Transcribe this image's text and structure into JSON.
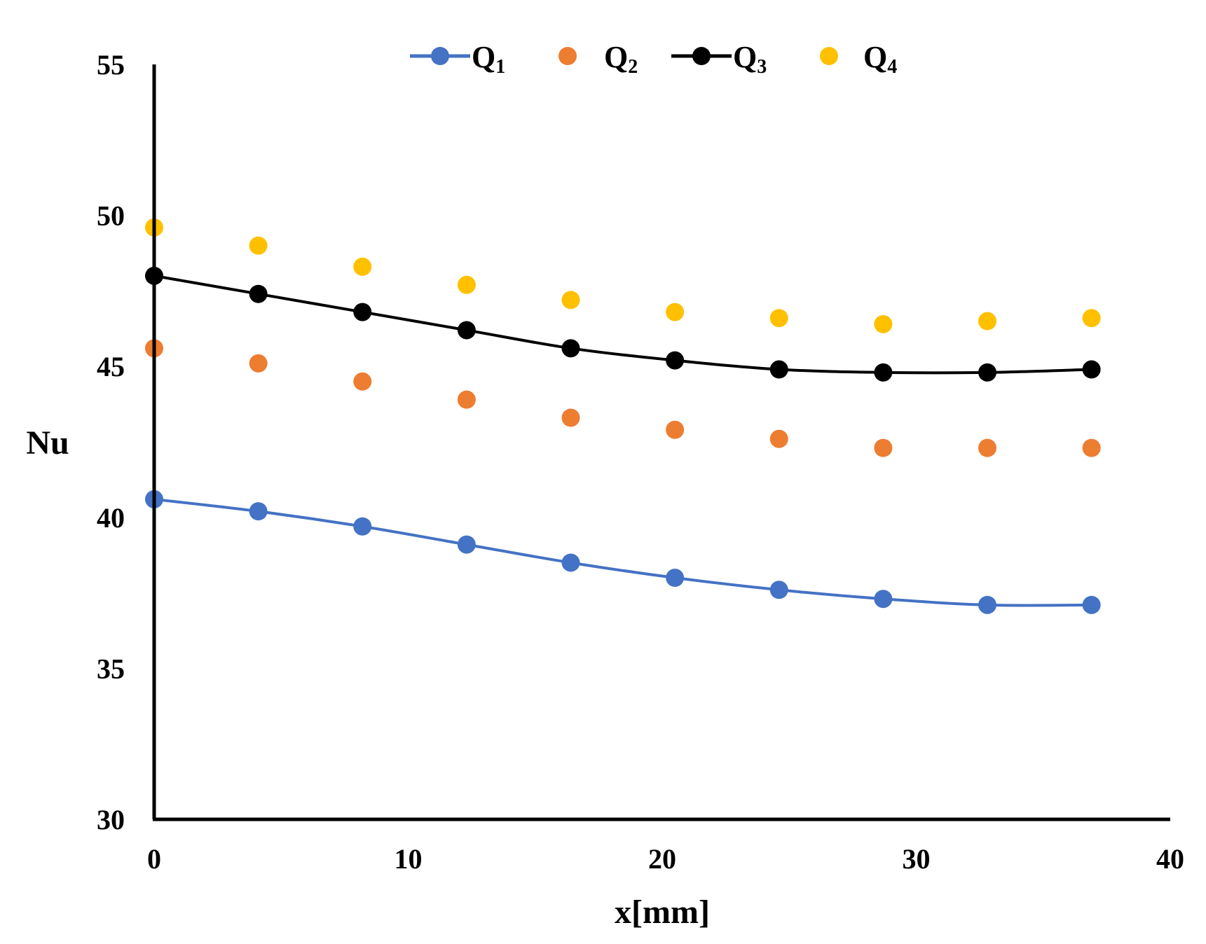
{
  "chart_data": {
    "type": "line",
    "title": "",
    "xlabel": "x[mm]",
    "ylabel": "Nu",
    "xlim": [
      0,
      40
    ],
    "ylim": [
      30,
      55
    ],
    "xticks": [
      0,
      10,
      20,
      30,
      40
    ],
    "yticks": [
      30,
      35,
      40,
      45,
      50,
      55
    ],
    "xtick_labels": [
      "0",
      "10",
      "20",
      "30",
      "40"
    ],
    "ytick_labels": [
      "30",
      "35",
      "40",
      "45",
      "50",
      "55"
    ],
    "grid": false,
    "legend_position": "top-center",
    "x": [
      0,
      4.1,
      8.2,
      12.3,
      16.4,
      20.5,
      24.6,
      28.7,
      32.8,
      36.9
    ],
    "series": [
      {
        "name": "Q1",
        "label_main": "Q",
        "label_sub": "1",
        "color": "#4472C4",
        "style": "line-markers",
        "values": [
          40.6,
          40.2,
          39.7,
          39.1,
          38.5,
          38.0,
          37.6,
          37.3,
          37.1,
          37.1
        ]
      },
      {
        "name": "Q2",
        "label_main": "Q",
        "label_sub": "2",
        "color": "#ED7D31",
        "style": "markers",
        "values": [
          45.6,
          45.1,
          44.5,
          43.9,
          43.3,
          42.9,
          42.6,
          42.3,
          42.3,
          42.3
        ]
      },
      {
        "name": "Q3",
        "label_main": "Q",
        "label_sub": "3",
        "color": "#000000",
        "style": "line-markers",
        "values": [
          48.0,
          47.4,
          46.8,
          46.2,
          45.6,
          45.2,
          44.9,
          44.8,
          44.8,
          44.9
        ]
      },
      {
        "name": "Q4",
        "label_main": "Q",
        "label_sub": "4",
        "color": "#FFC000",
        "style": "markers",
        "values": [
          49.6,
          49.0,
          48.3,
          47.7,
          47.2,
          46.8,
          46.6,
          46.4,
          46.5,
          46.6
        ]
      }
    ]
  }
}
